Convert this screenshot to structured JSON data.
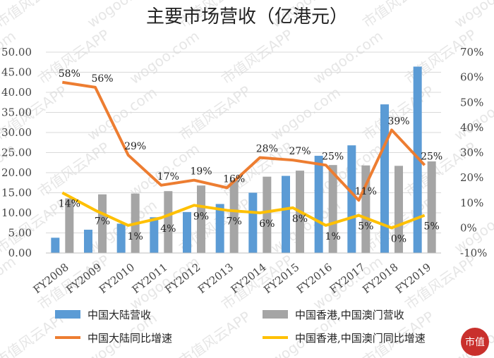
{
  "chart_data": {
    "type": "bar",
    "title": "主要市场营收（亿港元）",
    "categories": [
      "FY2008",
      "FY2009",
      "FY2010",
      "FY2011",
      "FY2012",
      "FY2013",
      "FY2014",
      "FY2015",
      "FY2016",
      "FY2017",
      "FY2018",
      "FY2019"
    ],
    "y_left": {
      "min": 0,
      "max": 50,
      "step": 5,
      "tick_format": "0.00"
    },
    "y_right": {
      "min": -10,
      "max": 70,
      "step": 10,
      "tick_format": "percent"
    },
    "series": [
      {
        "name": "中国大陆营收",
        "type": "bar",
        "axis": "left",
        "color": "#5b9bd5",
        "values": [
          3.8,
          5.8,
          7.3,
          8.9,
          10.2,
          12.2,
          15.0,
          19.2,
          24.2,
          26.8,
          37.0,
          46.4
        ]
      },
      {
        "name": "中国香港,中国澳门营收",
        "type": "bar",
        "axis": "left",
        "color": "#a5a5a5",
        "values": [
          13.6,
          14.6,
          14.8,
          15.4,
          16.8,
          18.2,
          19.0,
          20.5,
          21.9,
          21.8,
          21.7,
          22.8
        ]
      },
      {
        "name": "中国大陆同比增速",
        "type": "line",
        "axis": "right",
        "color": "#ed7d31",
        "values": [
          58,
          56,
          29,
          17,
          19,
          16,
          28,
          27,
          25,
          11,
          39,
          25
        ],
        "labels": [
          "58%",
          "56%",
          "29%",
          "17%",
          "19%",
          "16%",
          "28%",
          "27%",
          "25%",
          "11%",
          "39%",
          "25%"
        ]
      },
      {
        "name": "中国香港,中国澳门同比增速",
        "type": "line",
        "axis": "right",
        "color": "#ffc000",
        "values": [
          14,
          7,
          1,
          4,
          9,
          7,
          6,
          8,
          1,
          5,
          0,
          5
        ],
        "labels": [
          "14%",
          "7%",
          "1%",
          "4%",
          "9%",
          "7%",
          "6%",
          "8%",
          "1%",
          "5%",
          "0%",
          "5%"
        ]
      }
    ],
    "legend": "bottom",
    "grid": true
  },
  "watermark": {
    "text_a": "wogoo.com",
    "text_b": "市值风云APP"
  },
  "logo": {
    "text": "市值"
  }
}
